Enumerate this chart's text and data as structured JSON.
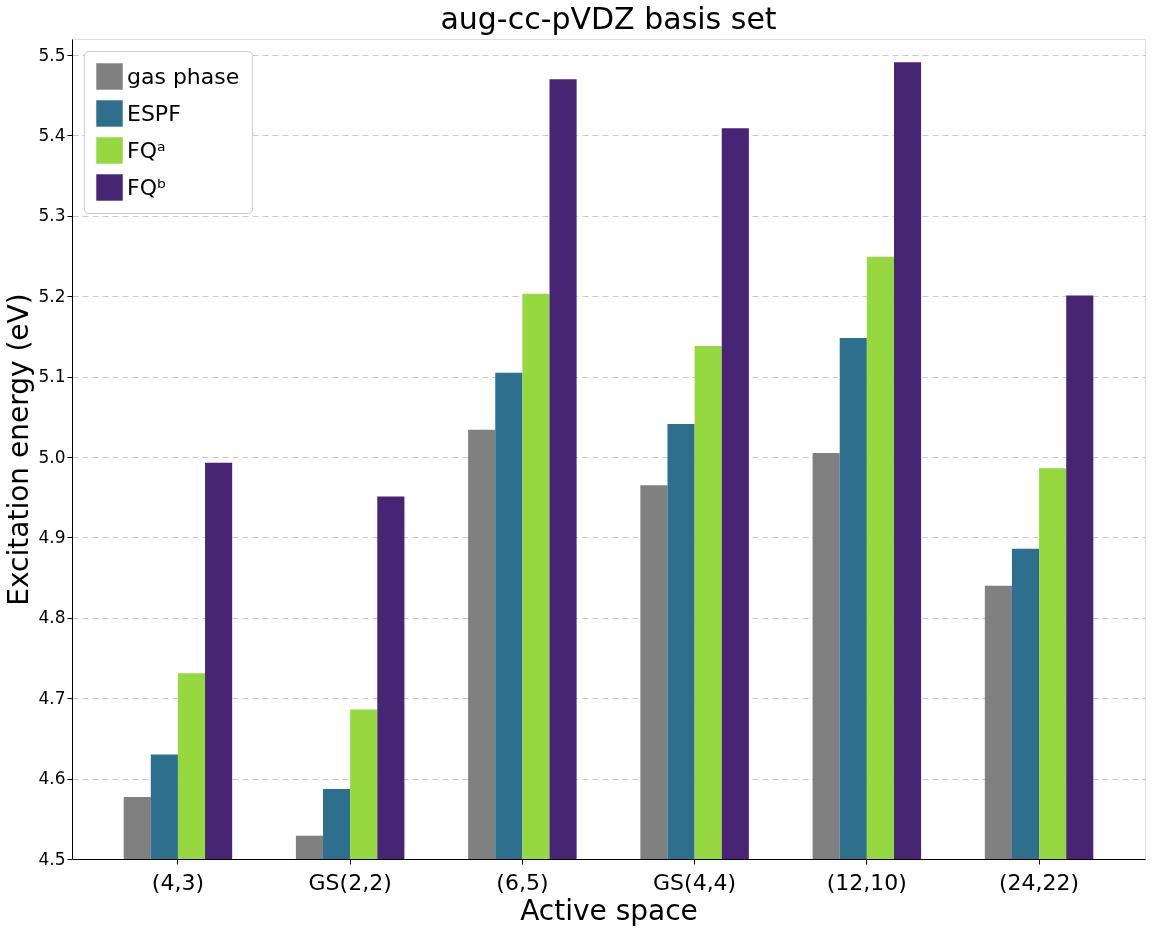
{
  "chart_data": {
    "type": "bar",
    "title": "aug-cc-pVDZ basis set",
    "xlabel": "Active space",
    "ylabel": "Excitation energy (eV)",
    "categories": [
      "(4,3)",
      "GS(2,2)",
      "(6,5)",
      "GS(4,4)",
      "(12,10)",
      "(24,22)"
    ],
    "series": [
      {
        "name": "gas phase",
        "color": "#808080",
        "values": [
          4.577,
          4.529,
          5.034,
          4.965,
          5.005,
          4.84
        ]
      },
      {
        "name": "ESPF",
        "color": "#2e6f8e",
        "values": [
          4.63,
          4.587,
          5.105,
          5.041,
          5.148,
          4.886
        ]
      },
      {
        "name": "FQᵃ",
        "color": "#95d840",
        "values": [
          4.731,
          4.686,
          5.203,
          5.138,
          5.249,
          4.986
        ]
      },
      {
        "name": "FQᵇ",
        "color": "#482475",
        "values": [
          4.993,
          4.951,
          5.47,
          5.409,
          5.491,
          5.201
        ]
      }
    ],
    "ylim": [
      4.5,
      5.52
    ],
    "yticks": [
      4.5,
      4.6,
      4.7,
      4.8,
      4.9,
      {
        "value": 5.0,
        "label": "5.0"
      },
      5.1,
      5.2,
      5.3,
      5.4,
      5.5
    ],
    "grid": "y",
    "legend": "top left"
  }
}
